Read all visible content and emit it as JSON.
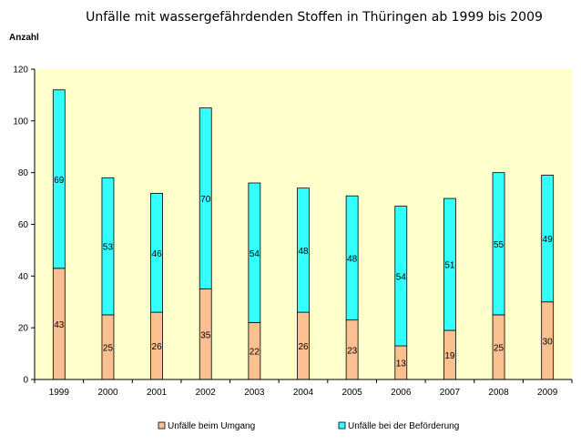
{
  "chart_data": {
    "type": "bar",
    "stacked": true,
    "title": "Unfälle mit wassergefährdenden Stoffen in Thüringen ab 1999 bis 2009",
    "xlabel": "",
    "ylabel": "Anzahl",
    "ylim": [
      0,
      120
    ],
    "yticks": [
      0,
      20,
      40,
      60,
      80,
      100,
      120
    ],
    "grid": false,
    "legend_position": "bottom",
    "background_color": "#ffffcc",
    "categories": [
      "1999",
      "2000",
      "2001",
      "2002",
      "2003",
      "2004",
      "2005",
      "2006",
      "2007",
      "2008",
      "2009"
    ],
    "series": [
      {
        "name": "Unfälle beim Umgang",
        "color": "#fac090",
        "values": [
          43,
          25,
          26,
          35,
          22,
          26,
          23,
          13,
          19,
          25,
          30
        ]
      },
      {
        "name": "Unfälle bei der Beförderung",
        "color": "#33ffff",
        "values": [
          69,
          53,
          46,
          70,
          54,
          48,
          48,
          54,
          51,
          55,
          49
        ]
      }
    ]
  }
}
